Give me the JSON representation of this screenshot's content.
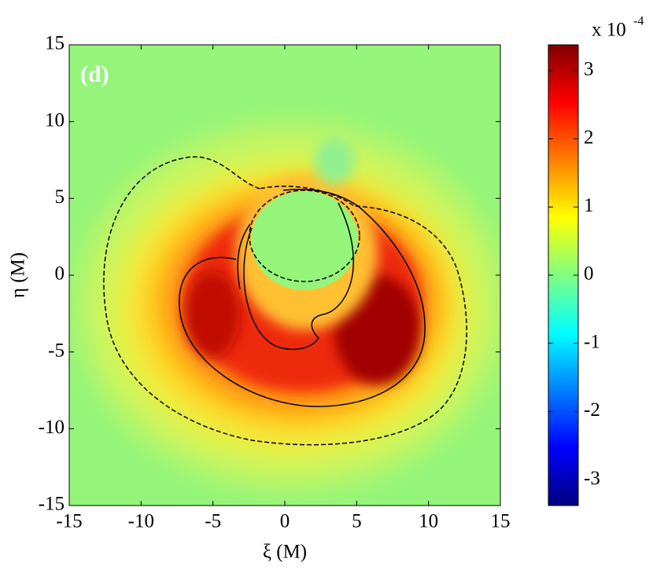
{
  "chart_data": {
    "type": "contour",
    "panel_label": "(d)",
    "x_label": "ξ (M)",
    "y_label": "η (M)",
    "xlim": [
      -15,
      15
    ],
    "xticks": [
      -15,
      -10,
      -5,
      0,
      5,
      10,
      15
    ],
    "ylim": [
      -15,
      15
    ],
    "yticks": [
      -15,
      -10,
      -5,
      0,
      5,
      10,
      15
    ],
    "colorbar": {
      "label": "x 10",
      "exponent": "-4",
      "colormap": "jet",
      "lim": [
        -3.38,
        3.38
      ],
      "ticks": [
        -3,
        -2,
        -1,
        0,
        1,
        2,
        3
      ]
    }
  }
}
